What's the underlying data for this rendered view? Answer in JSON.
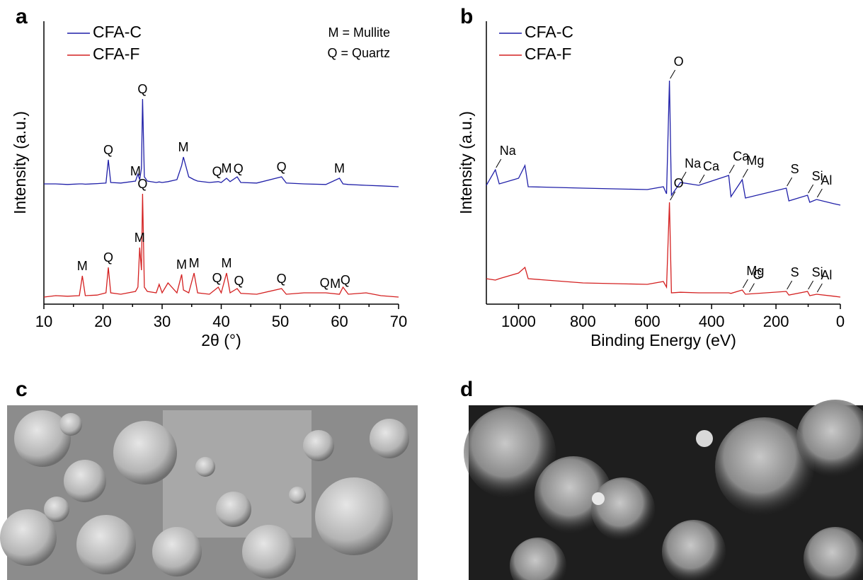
{
  "panel_labels": [
    "a",
    "b",
    "c",
    "d"
  ],
  "chart_data": [
    {
      "type": "line",
      "x_label": "2θ (°)",
      "y_label": "Intensity (a.u.)",
      "xlim": [
        10,
        70
      ],
      "xticks": [
        10,
        20,
        30,
        40,
        50,
        60,
        70
      ],
      "ylim": [
        0,
        100
      ],
      "legend": "upper left",
      "notes": [
        "M = Mullite",
        "Q = Quartz"
      ],
      "x": [
        10,
        12,
        14,
        16,
        16.5,
        17,
        19,
        20.5,
        20.9,
        21.3,
        23,
        25.5,
        25.9,
        26.2,
        26.5,
        26.7,
        27,
        27.5,
        29,
        29.5,
        30,
        31,
        32.5,
        33.3,
        33.6,
        34.5,
        35.4,
        36,
        38,
        39.5,
        40,
        40.9,
        41.5,
        42.7,
        43.3,
        46,
        50.2,
        51,
        54,
        57.7,
        60,
        60.6,
        61.5,
        64.5,
        67,
        70
      ],
      "series": [
        {
          "name": "CFA-C",
          "color": "#1f1fa8",
          "values": [
            42.5,
            42.5,
            42.3,
            42.5,
            42.5,
            42.4,
            42.6,
            42.8,
            51,
            43,
            42.8,
            43.5,
            46,
            44,
            48,
            72.5,
            45,
            43.5,
            43,
            43.2,
            43,
            43.3,
            44,
            49,
            52,
            45,
            44,
            43.5,
            43,
            43.3,
            43,
            44.5,
            43.3,
            45,
            43,
            42.8,
            45,
            42.8,
            42.5,
            42.3,
            44.5,
            42.5,
            42.3,
            42,
            41.8,
            41.5
          ]
        },
        {
          "name": "CFA-F",
          "color": "#d42020",
          "values": [
            2.5,
            3,
            2.8,
            3,
            10,
            3,
            3.2,
            4,
            13,
            4,
            3.5,
            4.5,
            6,
            20,
            12,
            39,
            6,
            4.5,
            4,
            7,
            4,
            7.5,
            4,
            10.5,
            5,
            4,
            11,
            4,
            3.5,
            6,
            4,
            11,
            4,
            5.5,
            3.8,
            3.5,
            5.5,
            3.5,
            4,
            4,
            3.5,
            6,
            3.5,
            4,
            3,
            2.5
          ]
        }
      ],
      "annotations": [
        {
          "text": "Q",
          "x": 20.9,
          "series": 0
        },
        {
          "text": "M",
          "x": 25.5,
          "series": 0
        },
        {
          "text": "Q",
          "x": 26.7,
          "series": 0
        },
        {
          "text": "M",
          "x": 33.6,
          "series": 0
        },
        {
          "text": "Q",
          "x": 39.3,
          "series": 0
        },
        {
          "text": "M",
          "x": 40.9,
          "series": 0
        },
        {
          "text": "Q",
          "x": 42.9,
          "series": 0
        },
        {
          "text": "Q",
          "x": 50.2,
          "series": 0
        },
        {
          "text": "M",
          "x": 60,
          "series": 0
        },
        {
          "text": "M",
          "x": 16.5,
          "series": 1
        },
        {
          "text": "Q",
          "x": 20.9,
          "series": 1
        },
        {
          "text": "M",
          "x": 26.2,
          "series": 1
        },
        {
          "text": "Q",
          "x": 26.7,
          "series": 1
        },
        {
          "text": "M",
          "x": 33.3,
          "series": 1
        },
        {
          "text": "M",
          "x": 35.4,
          "series": 1
        },
        {
          "text": "Q",
          "x": 39.3,
          "series": 1
        },
        {
          "text": "M",
          "x": 40.9,
          "series": 1
        },
        {
          "text": "Q",
          "x": 43.0,
          "series": 1
        },
        {
          "text": "Q",
          "x": 50.2,
          "series": 1
        },
        {
          "text": "Q",
          "x": 57.5,
          "series": 1
        },
        {
          "text": "M",
          "x": 59.3,
          "series": 1
        },
        {
          "text": "Q",
          "x": 61.0,
          "series": 1
        }
      ]
    },
    {
      "type": "line",
      "x_label": "Binding Energy (eV)",
      "y_label": "Intensity (a.u.)",
      "xlim": [
        1100,
        0
      ],
      "xticks": [
        1000,
        800,
        600,
        400,
        200,
        0
      ],
      "ylim": [
        0,
        100
      ],
      "legend": "upper left",
      "x": [
        1100,
        1072,
        1060,
        1000,
        980,
        970,
        800,
        600,
        550,
        540,
        531,
        525,
        497,
        440,
        347,
        340,
        305,
        295,
        168,
        160,
        102,
        95,
        74,
        20,
        0
      ],
      "series": [
        {
          "name": "CFA-C",
          "color": "#1f1fa8",
          "values": [
            42,
            47.5,
            42.5,
            44.5,
            49,
            41.5,
            41,
            40.5,
            41.5,
            39,
            79,
            38.5,
            43,
            42,
            45.5,
            38,
            44,
            37.5,
            41,
            36.5,
            38.5,
            36,
            37,
            35.5,
            35
          ]
        },
        {
          "name": "CFA-F",
          "color": "#d42020",
          "values": [
            9,
            8.5,
            9,
            11,
            13,
            9,
            7.5,
            7,
            8,
            6,
            36,
            4,
            4.2,
            4,
            4,
            3.8,
            5,
            3.5,
            4.5,
            3.2,
            4.5,
            3,
            3.5,
            2.8,
            2.5
          ]
        }
      ],
      "annotations": [
        {
          "text": "Na",
          "x": 1072,
          "series": 0
        },
        {
          "text": "O",
          "x": 531,
          "series": 0
        },
        {
          "text": "Na",
          "x": 497,
          "series": 0
        },
        {
          "text": "Ca",
          "x": 440,
          "series": 0
        },
        {
          "text": "Ca",
          "x": 347,
          "series": 0
        },
        {
          "text": "Mg",
          "x": 305,
          "series": 0
        },
        {
          "text": "S",
          "x": 168,
          "series": 0
        },
        {
          "text": "Si",
          "x": 102,
          "series": 0
        },
        {
          "text": "Al",
          "x": 74,
          "series": 0
        },
        {
          "text": "O",
          "x": 531,
          "series": 1
        },
        {
          "text": "Mg",
          "x": 305,
          "series": 1
        },
        {
          "text": "C",
          "x": 285,
          "series": 1
        },
        {
          "text": "S",
          "x": 168,
          "series": 1
        },
        {
          "text": "Si",
          "x": 102,
          "series": 1
        },
        {
          "text": "Al",
          "x": 74,
          "series": 1
        }
      ]
    }
  ]
}
